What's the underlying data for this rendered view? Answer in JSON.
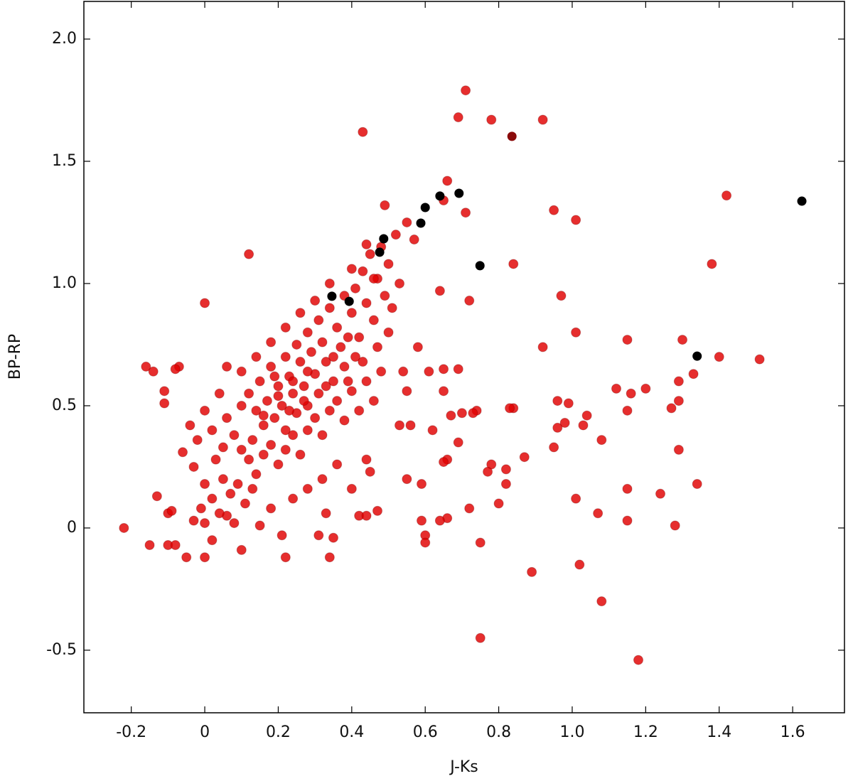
{
  "chart_data": {
    "type": "scatter",
    "x_label": "J-Ks",
    "y_label": "BP-RP",
    "xlim": [
      -0.329,
      1.741
    ],
    "ylim": [
      -0.756,
      2.154
    ],
    "xticks": [
      -0.2,
      0,
      0.2,
      0.4,
      0.6,
      0.8,
      {
        "value": 1,
        "label": "1.0"
      },
      1.2,
      1.4,
      1.6
    ],
    "yticks": [
      -0.5,
      0,
      0.5,
      {
        "value": 1,
        "label": "1.0"
      },
      1.5,
      {
        "value": 2,
        "label": "2.0"
      }
    ],
    "series": [
      {
        "color": "#e00000",
        "x": [
          0.71,
          0.69,
          0.78,
          0.92,
          0.43,
          0.66,
          0.65,
          0.71,
          0.95,
          1.01,
          1.42,
          0.49,
          0.84,
          1.38,
          0.12,
          0.0,
          0.72,
          0.97,
          0.64,
          1.01,
          0.92,
          1.15,
          1.3,
          1.4,
          1.51,
          1.33,
          1.29,
          0.69,
          0.65,
          0.58,
          0.61,
          0.65,
          1.12,
          1.2,
          1.16,
          1.29,
          1.27,
          1.15,
          0.96,
          0.99,
          1.04,
          0.98,
          0.96,
          1.03,
          0.84,
          0.83,
          0.74,
          0.67,
          0.7,
          0.73,
          0.69,
          0.62,
          0.66,
          0.65,
          1.08,
          0.95,
          1.29,
          0.87,
          0.78,
          0.77,
          0.82,
          0.59,
          0.82,
          1.34,
          1.15,
          1.24,
          1.01,
          0.8,
          0.72,
          1.07,
          0.66,
          0.64,
          0.59,
          1.15,
          1.28,
          0.6,
          0.6,
          0.75,
          0.89,
          1.02,
          1.08,
          0.75,
          1.18,
          -0.22,
          -0.15,
          -0.16,
          -0.14,
          -0.11,
          -0.11,
          -0.07,
          -0.08,
          -0.13,
          -0.1,
          -0.09,
          -0.1,
          -0.08,
          -0.05,
          0.0,
          0.22,
          0.34,
          0.55,
          0.56,
          0.53,
          0.54,
          0.55,
          0.5,
          0.44,
          0.45,
          0.4,
          0.42,
          0.44,
          0.47,
          0.33,
          0.35,
          0.31,
          0.21,
          0.15,
          0.1,
          0.02,
          0.0,
          -0.03,
          0.06,
          0.1,
          0.12,
          0.14,
          0.15,
          0.16,
          0.17,
          0.18,
          0.19,
          0.2,
          0.21,
          0.22,
          0.22,
          0.23,
          0.24,
          0.25,
          0.25,
          0.26,
          0.27,
          0.28,
          0.28,
          0.29,
          0.3,
          0.31,
          0.31,
          0.32,
          0.33,
          0.34,
          0.35,
          0.36,
          0.37,
          0.38,
          0.38,
          0.4,
          0.41,
          0.42,
          0.43,
          0.44,
          0.45,
          0.46,
          0.47,
          0.48,
          0.5,
          0.52,
          0.53,
          0.55,
          0.57,
          0.49,
          0.51,
          0.08,
          0.1,
          0.12,
          0.13,
          0.14,
          0.16,
          0.18,
          0.2,
          0.22,
          0.24,
          0.26,
          0.28,
          0.3,
          0.32,
          0.34,
          0.36,
          0.38,
          0.4,
          0.42,
          0.44,
          0.46,
          0.48,
          0.06,
          0.04,
          0.02,
          0.0,
          -0.02,
          -0.04,
          0.03,
          0.05,
          0.07,
          0.09,
          0.11,
          0.13,
          0.02,
          -0.01,
          0.04,
          0.08,
          0.18,
          0.24,
          0.28,
          0.32,
          0.36,
          0.26,
          0.22,
          0.18,
          0.14,
          0.1,
          0.06,
          0.3,
          0.34,
          0.4,
          0.44,
          0.46,
          0.16,
          0.2,
          0.24,
          0.28,
          0.19,
          0.23,
          0.27,
          0.33,
          0.35,
          0.39,
          -0.06,
          -0.03,
          0.0,
          0.05,
          0.41,
          0.43,
          0.47,
          0.39
        ],
        "values": [
          1.79,
          1.68,
          1.67,
          1.67,
          1.62,
          1.42,
          1.34,
          1.29,
          1.3,
          1.26,
          1.36,
          1.32,
          1.08,
          1.08,
          1.12,
          0.92,
          0.93,
          0.95,
          0.97,
          0.8,
          0.74,
          0.77,
          0.77,
          0.7,
          0.69,
          0.63,
          0.6,
          0.65,
          0.65,
          0.74,
          0.64,
          0.56,
          0.57,
          0.57,
          0.55,
          0.52,
          0.49,
          0.48,
          0.52,
          0.51,
          0.46,
          0.43,
          0.41,
          0.42,
          0.49,
          0.49,
          0.48,
          0.46,
          0.47,
          0.47,
          0.35,
          0.4,
          0.28,
          0.27,
          0.36,
          0.33,
          0.32,
          0.29,
          0.26,
          0.23,
          0.24,
          0.18,
          0.18,
          0.18,
          0.16,
          0.14,
          0.12,
          0.1,
          0.08,
          0.06,
          0.04,
          0.03,
          0.03,
          0.03,
          0.01,
          -0.03,
          -0.06,
          -0.06,
          -0.18,
          -0.15,
          -0.3,
          -0.45,
          -0.54,
          0.0,
          -0.07,
          0.66,
          0.64,
          0.56,
          0.51,
          0.66,
          0.65,
          0.13,
          0.06,
          0.07,
          -0.07,
          -0.07,
          -0.12,
          -0.12,
          -0.12,
          -0.12,
          0.2,
          0.42,
          0.42,
          0.64,
          0.56,
          0.8,
          0.28,
          0.23,
          0.16,
          0.05,
          0.05,
          0.07,
          0.06,
          -0.04,
          -0.03,
          -0.03,
          0.01,
          -0.09,
          -0.05,
          0.02,
          0.03,
          0.05,
          0.5,
          0.55,
          0.48,
          0.6,
          0.42,
          0.52,
          0.66,
          0.45,
          0.58,
          0.5,
          0.7,
          0.4,
          0.62,
          0.55,
          0.75,
          0.47,
          0.68,
          0.58,
          0.8,
          0.5,
          0.72,
          0.63,
          0.85,
          0.55,
          0.76,
          0.68,
          0.9,
          0.6,
          0.82,
          0.74,
          0.95,
          0.66,
          0.88,
          0.98,
          0.78,
          1.05,
          0.92,
          1.12,
          0.85,
          1.02,
          1.15,
          1.08,
          1.2,
          1.0,
          1.25,
          1.18,
          0.95,
          0.9,
          0.38,
          0.32,
          0.28,
          0.36,
          0.22,
          0.3,
          0.34,
          0.26,
          0.32,
          0.38,
          0.3,
          0.4,
          0.45,
          0.38,
          0.48,
          0.52,
          0.44,
          0.56,
          0.48,
          0.6,
          0.52,
          0.64,
          0.45,
          0.55,
          0.4,
          0.48,
          0.36,
          0.42,
          0.28,
          0.2,
          0.14,
          0.18,
          0.1,
          0.16,
          0.12,
          0.08,
          0.06,
          0.02,
          0.08,
          0.12,
          0.16,
          0.2,
          0.26,
          0.88,
          0.82,
          0.76,
          0.7,
          0.64,
          0.66,
          0.93,
          1.0,
          1.06,
          1.16,
          1.02,
          0.46,
          0.54,
          0.6,
          0.64,
          0.62,
          0.48,
          0.52,
          0.58,
          0.7,
          0.78,
          0.31,
          0.25,
          0.18,
          0.33,
          0.7,
          0.68,
          0.74,
          0.6
        ]
      },
      {
        "color": "#8a0a0a",
        "x": [
          0.836
        ],
        "values": [
          1.602
        ]
      },
      {
        "color": "#000000",
        "x": [
          0.346,
          0.393,
          0.476,
          0.487,
          0.588,
          0.6,
          0.64,
          0.692,
          0.749,
          1.34,
          1.625
        ],
        "values": [
          0.948,
          0.927,
          1.128,
          1.183,
          1.247,
          1.311,
          1.358,
          1.369,
          1.073,
          0.703,
          1.337
        ]
      }
    ]
  }
}
